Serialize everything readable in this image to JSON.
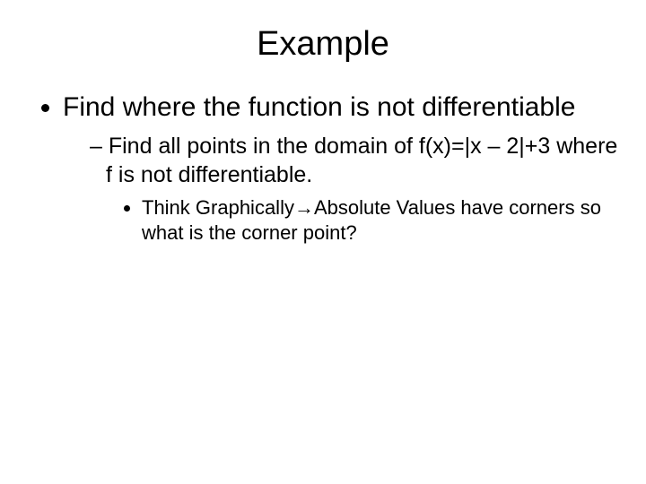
{
  "title": "Example",
  "bullets": {
    "l1": "Find where the function is not differentiable",
    "l2": "Find all points in the domain of f(x)=|x – 2|+3 where f is not differentiable.",
    "l3": "Think Graphically→Absolute Values have corners so what is the corner point?"
  },
  "style": {
    "background_color": "#ffffff",
    "text_color": "#000000",
    "title_fontsize": 38,
    "l1_fontsize": 30,
    "l2_fontsize": 25,
    "l3_fontsize": 22,
    "font_family": "Arial"
  }
}
